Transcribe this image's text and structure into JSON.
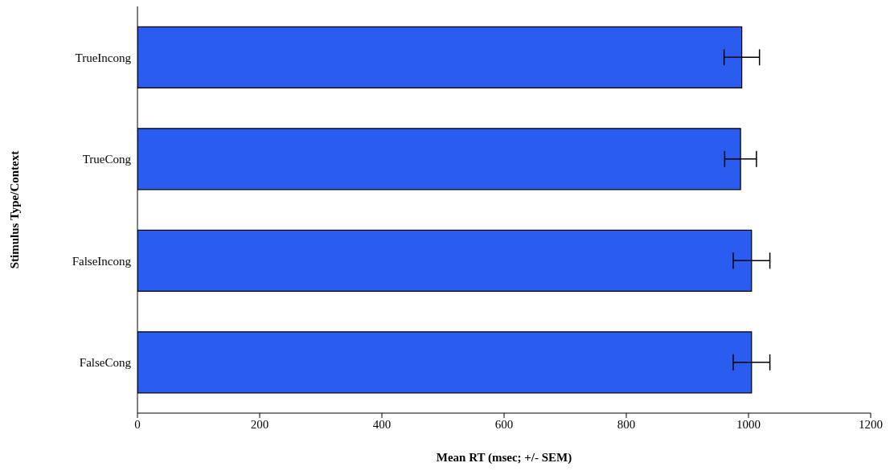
{
  "chart_data": {
    "type": "bar",
    "orientation": "horizontal",
    "xlabel": "Mean RT (msec; +/- SEM)",
    "ylabel": "Stimulus Type/Context",
    "categories": [
      "TrueIncong",
      "TrueCong",
      "FalseIncong",
      "FalseCong"
    ],
    "values": [
      989,
      987,
      1005,
      1005
    ],
    "errors": [
      29,
      26,
      30,
      30
    ],
    "color": "#2a5cf0",
    "xlim": [
      0,
      1200
    ],
    "xticks": [
      0,
      200,
      400,
      600,
      800,
      1000,
      1200
    ]
  }
}
